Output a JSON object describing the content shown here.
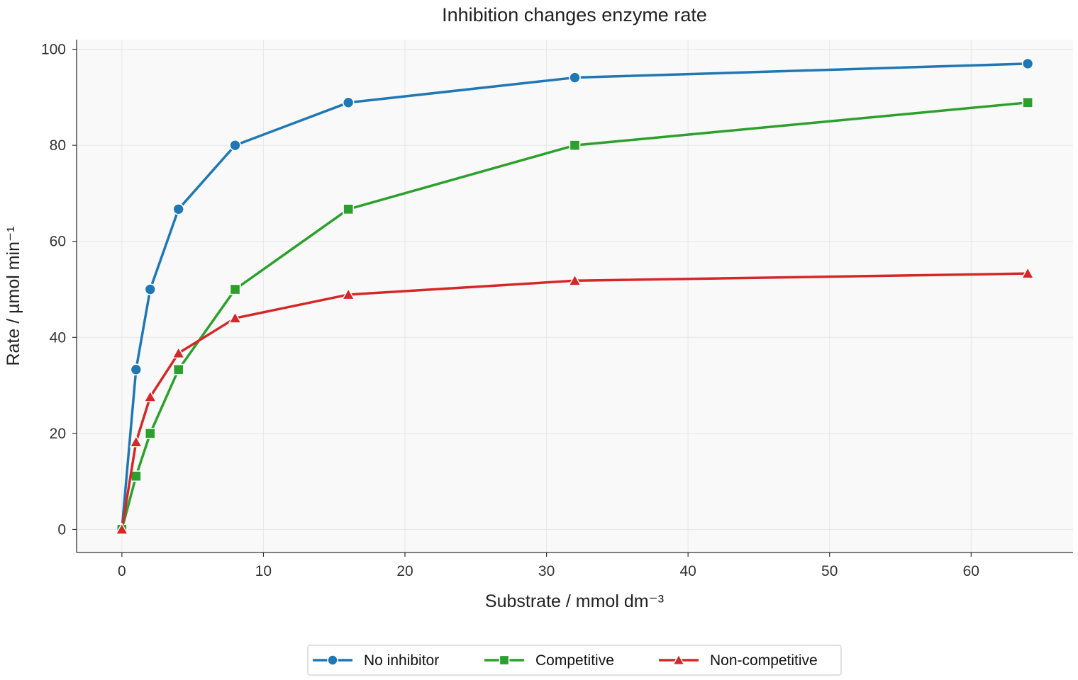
{
  "chart_data": {
    "type": "line",
    "title": "Inhibition changes enzyme rate",
    "xlabel": "Substrate / mmol dm⁻³",
    "ylabel": "Rate / µmol min⁻¹",
    "xlim": [
      -3.2,
      67.2
    ],
    "ylim": [
      -4.8,
      102
    ],
    "xticks": [
      0,
      10,
      20,
      30,
      40,
      50,
      60
    ],
    "yticks": [
      0,
      20,
      40,
      60,
      80,
      100
    ],
    "grid": true,
    "legend_position": "bottom-center",
    "x": [
      0,
      1,
      2,
      4,
      8,
      16,
      32,
      64
    ],
    "series": [
      {
        "name": "No inhibitor",
        "color": "#1f77b4",
        "marker": "circle",
        "values": [
          0,
          33.3,
          50.0,
          66.7,
          80.0,
          88.9,
          94.1,
          97.0
        ]
      },
      {
        "name": "Competitive",
        "color": "#2ca02c",
        "marker": "square",
        "values": [
          0,
          11.1,
          20.0,
          33.3,
          50.0,
          66.7,
          80.0,
          88.9
        ]
      },
      {
        "name": "Non-competitive",
        "color": "#d62728",
        "marker": "triangle",
        "values": [
          0,
          18.2,
          27.6,
          36.7,
          44.0,
          48.9,
          51.8,
          53.3
        ]
      }
    ]
  }
}
